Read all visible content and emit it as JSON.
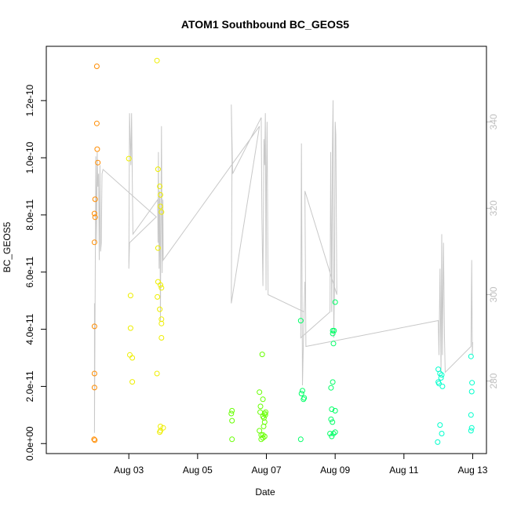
{
  "chart_data": {
    "type": "scatter",
    "title": "ATOM1 Southbound BC_GEOS5",
    "xlabel": "Date",
    "ylabel": "BC_GEOS5",
    "x_axis": {
      "range": [
        0.6,
        13.4
      ],
      "ticks": [
        {
          "value": 3,
          "label": "Aug 03"
        },
        {
          "value": 5,
          "label": "Aug 05"
        },
        {
          "value": 7,
          "label": "Aug 07"
        },
        {
          "value": 9,
          "label": "Aug 09"
        },
        {
          "value": 11,
          "label": "Aug 11"
        },
        {
          "value": 13,
          "label": "Aug 13"
        }
      ]
    },
    "y_axis": {
      "range": [
        -3.5e-12,
        1.39e-10
      ],
      "ticks": [
        {
          "value": 0,
          "label": "0.0e+00"
        },
        {
          "value": 2e-11,
          "label": "2.0e-11"
        },
        {
          "value": 4e-11,
          "label": "4.0e-11"
        },
        {
          "value": 6e-11,
          "label": "6.0e-11"
        },
        {
          "value": 8e-11,
          "label": "8.0e-11"
        },
        {
          "value": 1e-10,
          "label": "1.0e-10"
        },
        {
          "value": 1.2e-10,
          "label": "1.2e-10"
        }
      ]
    },
    "y2_axis": {
      "range": [
        263.2,
        357.5
      ],
      "ticks": [
        {
          "value": 280,
          "label": "280"
        },
        {
          "value": 300,
          "label": "300"
        },
        {
          "value": 320,
          "label": "320"
        },
        {
          "value": 340,
          "label": "340"
        }
      ],
      "color": "#bfbfbf"
    },
    "grid": false,
    "series": [
      {
        "color": "#ff8c00",
        "points": [
          [
            1.99,
            1.5e-12
          ],
          [
            2.01,
            1.2e-12
          ],
          [
            2.0,
            1.96e-11
          ],
          [
            2.0,
            2.45e-11
          ],
          [
            2.0,
            4.1e-11
          ],
          [
            2.0,
            7.04e-11
          ],
          [
            2.02,
            7.92e-11
          ],
          [
            2.0,
            8.05e-11
          ],
          [
            2.02,
            8.55e-11
          ],
          [
            2.1,
            9.83e-11
          ],
          [
            2.08,
            1.03e-10
          ],
          [
            2.07,
            1.12e-10
          ],
          [
            2.07,
            1.32e-10
          ]
        ]
      },
      {
        "color": "#eeee00",
        "points": [
          [
            3.0,
            9.97e-11
          ],
          [
            3.05,
            5.18e-11
          ],
          [
            3.05,
            4.04e-11
          ],
          [
            3.03,
            3.1e-11
          ],
          [
            3.1,
            3e-11
          ],
          [
            3.1,
            2.16e-11
          ],
          [
            3.82,
            2.45e-11
          ],
          [
            3.82,
            1.34e-10
          ],
          [
            3.85,
            6.84e-11
          ],
          [
            3.85,
            5.66e-11
          ],
          [
            3.83,
            5.13e-11
          ],
          [
            3.92,
            5.55e-11
          ],
          [
            3.95,
            5.45e-11
          ],
          [
            3.9,
            4.7e-11
          ],
          [
            3.95,
            4.35e-11
          ],
          [
            3.95,
            4.2e-11
          ],
          [
            3.95,
            3.7e-11
          ],
          [
            3.92,
            6e-12
          ],
          [
            3.92,
            4.5e-12
          ],
          [
            4.0,
            5.5e-12
          ],
          [
            3.9,
            4e-12
          ],
          [
            3.92,
            8.7e-11
          ],
          [
            3.92,
            8.3e-11
          ],
          [
            3.95,
            8.1e-11
          ],
          [
            3.85,
            9.6e-11
          ],
          [
            3.9,
            9e-11
          ]
        ]
      },
      {
        "color": "#66ff00",
        "points": [
          [
            6.0,
            1.15e-11
          ],
          [
            5.98,
            1.05e-11
          ],
          [
            6.0,
            8e-12
          ],
          [
            6.0,
            1.5e-12
          ],
          [
            6.8,
            1.8e-11
          ],
          [
            6.83,
            1.3e-11
          ],
          [
            6.9,
            1.55e-11
          ],
          [
            6.82,
            1.1e-11
          ],
          [
            6.8,
            4.5e-12
          ],
          [
            6.85,
            1.5e-12
          ],
          [
            6.9,
            3e-12
          ],
          [
            6.95,
            2.5e-12
          ],
          [
            6.9,
            2e-12
          ],
          [
            6.95,
            7.5e-12
          ],
          [
            6.93,
            9e-12
          ],
          [
            6.97,
            1e-11
          ],
          [
            6.98,
            1.1e-11
          ],
          [
            6.95,
            1.05e-11
          ],
          [
            6.9,
            9.5e-12
          ],
          [
            6.88,
            3.12e-11
          ],
          [
            6.92,
            6e-12
          ],
          [
            6.85,
            3e-12
          ]
        ]
      },
      {
        "color": "#00ff66",
        "points": [
          [
            8.0,
            4.3e-11
          ],
          [
            8.05,
            1.85e-11
          ],
          [
            8.02,
            1.75e-11
          ],
          [
            8.1,
            1.6e-11
          ],
          [
            8.08,
            1.55e-11
          ],
          [
            8.0,
            1.5e-12
          ],
          [
            8.85,
            3.5e-12
          ],
          [
            8.9,
            2.5e-12
          ],
          [
            8.95,
            3.5e-12
          ],
          [
            9.0,
            4e-12
          ],
          [
            8.88,
            8.5e-12
          ],
          [
            8.92,
            7.5e-12
          ],
          [
            8.9,
            1.2e-11
          ],
          [
            9.0,
            1.15e-11
          ],
          [
            8.88,
            1.95e-11
          ],
          [
            8.93,
            2.15e-11
          ],
          [
            8.95,
            3.5e-11
          ],
          [
            8.93,
            3.85e-11
          ],
          [
            8.97,
            3.95e-11
          ],
          [
            8.93,
            3.95e-11
          ],
          [
            9.0,
            4.95e-11
          ]
        ]
      },
      {
        "color": "#00ffcc",
        "points": [
          [
            12.0,
            2.6e-11
          ],
          [
            12.05,
            2.45e-11
          ],
          [
            12.08,
            2.3e-11
          ],
          [
            12.1,
            2.4e-11
          ],
          [
            12.0,
            2.15e-11
          ],
          [
            12.02,
            2.1e-11
          ],
          [
            12.12,
            2e-11
          ],
          [
            12.05,
            6.5e-12
          ],
          [
            12.1,
            3.5e-12
          ],
          [
            11.98,
            5e-13
          ],
          [
            12.95,
            3.05e-11
          ],
          [
            12.98,
            2.13e-11
          ],
          [
            12.97,
            1.82e-11
          ],
          [
            12.95,
            1e-11
          ],
          [
            12.97,
            5.5e-12
          ],
          [
            12.95,
            4.5e-12
          ]
        ]
      }
    ],
    "line_series": {
      "color": "#c8c8c8",
      "axis": "right",
      "points": [
        [
          2.0,
          298
        ],
        [
          2.0,
          268
        ],
        [
          2.02,
          298
        ],
        [
          2.04,
          332
        ],
        [
          2.06,
          312
        ],
        [
          2.08,
          333
        ],
        [
          2.1,
          325
        ],
        [
          2.12,
          328
        ],
        [
          2.14,
          308
        ],
        [
          2.16,
          330
        ],
        [
          2.18,
          310
        ],
        [
          2.2,
          312
        ],
        [
          2.22,
          328
        ],
        [
          2.25,
          329
        ],
        [
          3.8,
          318
        ],
        [
          3.02,
          312
        ],
        [
          3.0,
          306
        ],
        [
          3.02,
          342
        ],
        [
          3.06,
          330
        ],
        [
          3.08,
          342
        ],
        [
          3.12,
          314
        ],
        [
          3.84,
          322
        ],
        [
          3.85,
          312
        ],
        [
          3.86,
          333
        ],
        [
          3.88,
          306
        ],
        [
          3.9,
          324
        ],
        [
          3.92,
          294
        ],
        [
          3.93,
          312
        ],
        [
          3.95,
          339
        ],
        [
          3.97,
          305
        ],
        [
          3.99,
          322
        ],
        [
          4.0,
          308
        ],
        [
          6.8,
          339
        ],
        [
          5.98,
          298
        ],
        [
          6.0,
          331
        ],
        [
          5.98,
          344
        ],
        [
          6.02,
          328
        ],
        [
          6.85,
          341
        ],
        [
          6.87,
          318
        ],
        [
          6.9,
          302
        ],
        [
          6.93,
          336
        ],
        [
          6.95,
          330
        ],
        [
          6.97,
          342
        ],
        [
          6.99,
          301
        ],
        [
          7.0,
          325
        ],
        [
          7.02,
          340
        ],
        [
          7.05,
          300
        ],
        [
          8.1,
          296
        ],
        [
          8.12,
          303
        ],
        [
          8.08,
          290
        ],
        [
          8.05,
          279
        ],
        [
          8.02,
          335
        ],
        [
          8.0,
          290
        ],
        [
          8.85,
          296
        ],
        [
          8.87,
          333
        ],
        [
          8.9,
          296
        ],
        [
          8.92,
          334
        ],
        [
          8.94,
          345
        ],
        [
          8.96,
          290
        ],
        [
          8.98,
          302
        ],
        [
          9.0,
          340
        ],
        [
          9.02,
          337
        ],
        [
          9.05,
          300
        ],
        [
          8.12,
          324
        ],
        [
          8.15,
          288
        ],
        [
          12.0,
          294
        ],
        [
          12.02,
          286
        ],
        [
          12.05,
          306
        ],
        [
          12.08,
          282
        ],
        [
          12.1,
          314
        ],
        [
          12.12,
          286
        ],
        [
          12.15,
          312
        ],
        [
          12.18,
          290
        ],
        [
          12.2,
          282
        ],
        [
          12.95,
          288
        ],
        [
          12.97,
          308
        ],
        [
          12.99,
          286
        ],
        [
          13.0,
          289
        ]
      ]
    }
  }
}
